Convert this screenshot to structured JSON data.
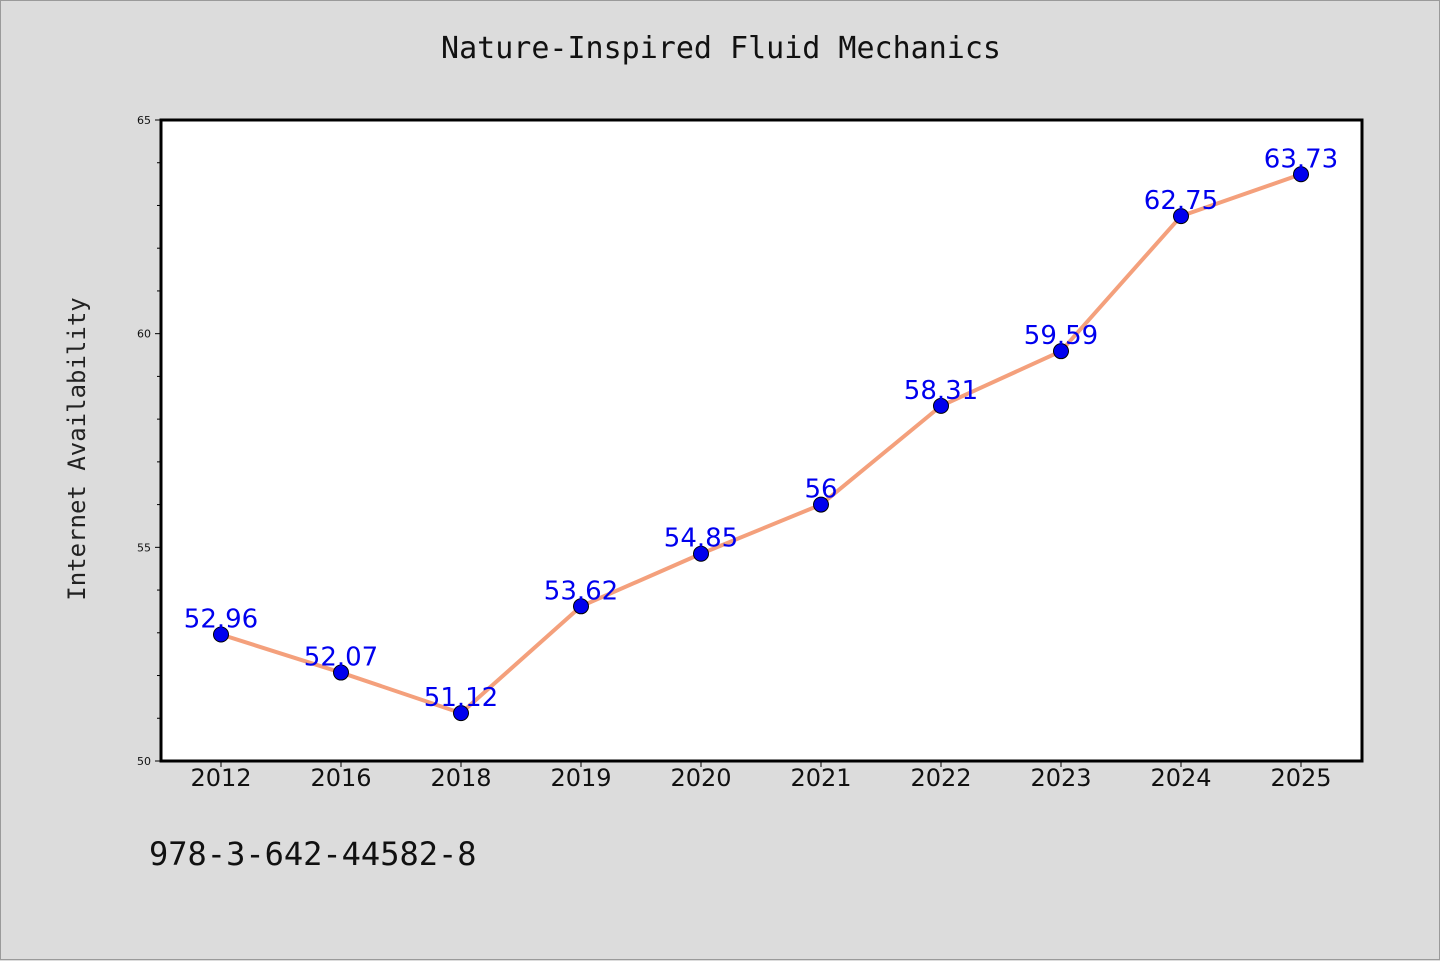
{
  "chart_data": {
    "type": "line",
    "title": "Nature-Inspired Fluid Mechanics",
    "xlabel": "",
    "ylabel": "Internet Availability",
    "categories": [
      "2012",
      "2016",
      "2018",
      "2019",
      "2020",
      "2021",
      "2022",
      "2023",
      "2024",
      "2025"
    ],
    "series": [
      {
        "values": [
          52.96,
          52.07,
          51.12,
          53.62,
          54.85,
          56,
          58.31,
          59.59,
          62.75,
          63.73
        ],
        "labels": [
          "52.96",
          "52.07",
          "51.12",
          "53.62",
          "54.85",
          "56",
          "58.31",
          "59.59",
          "62.75",
          "63.73"
        ],
        "line_color": "#f4a07c",
        "marker_color": "#0000ee",
        "label_color": "#0000ee"
      }
    ],
    "ylim": [
      50,
      65
    ],
    "yticks": [
      "50",
      "55",
      "60",
      "65"
    ],
    "grid": false,
    "legend": "none"
  },
  "footer": {
    "code": "978-3-642-44582-8"
  }
}
